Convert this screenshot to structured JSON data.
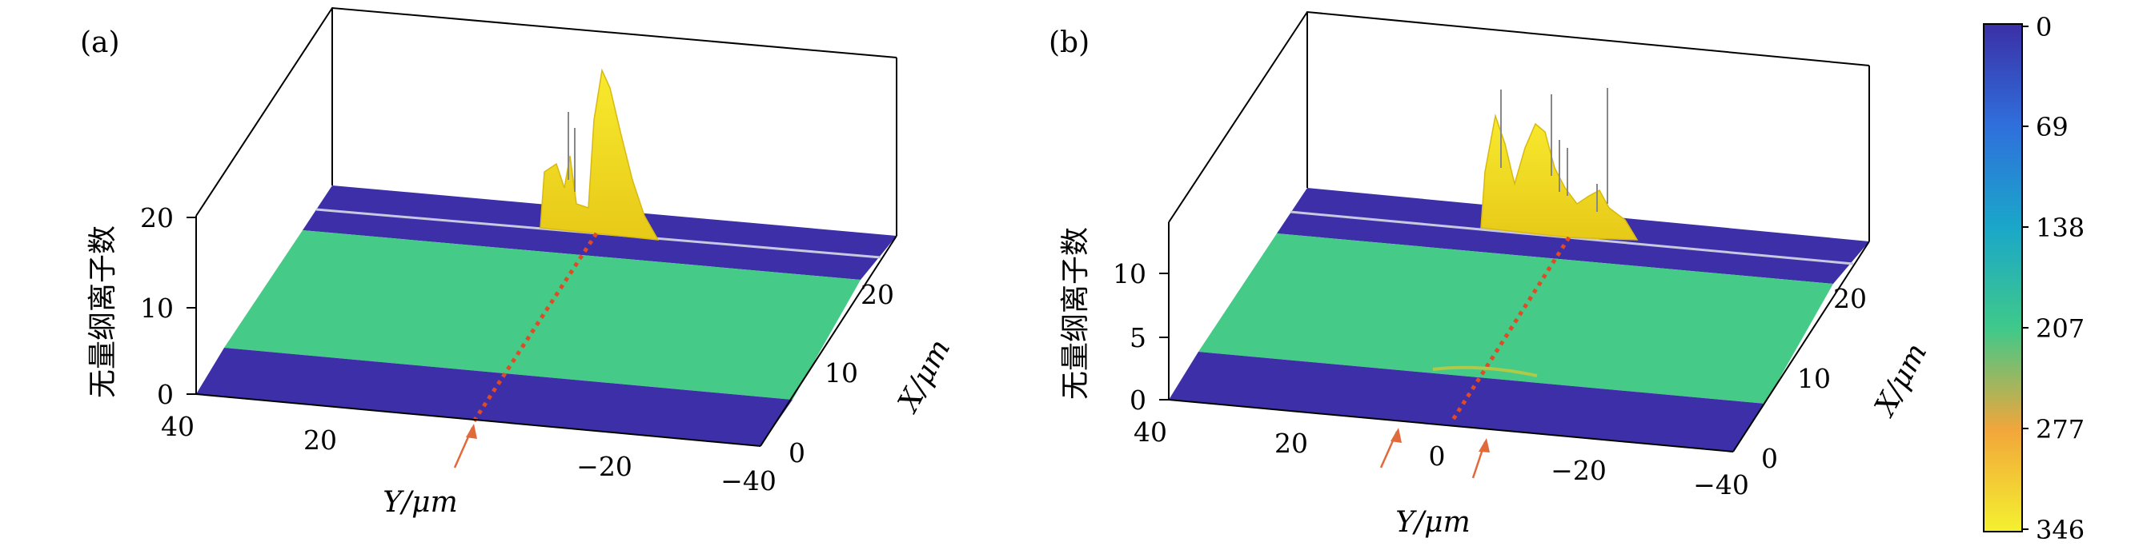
{
  "chart_data": [
    {
      "type": "surface3d",
      "panel_label": "(a)",
      "zlabel": "无量纲离子数",
      "xlabel": "Y/μm",
      "ylabel": "X/μm",
      "z_ticks": [
        "0",
        "10",
        "20"
      ],
      "y_ticks": [
        "40",
        "20",
        "−20",
        "−40"
      ],
      "x_ticks": [
        "0",
        "10",
        "20"
      ],
      "zlim": [
        0,
        20
      ],
      "ylim": [
        40,
        -40
      ],
      "xlim": [
        0,
        25
      ],
      "bands": [
        {
          "name": "low-region-near",
          "value": 0
        },
        {
          "name": "mid-region",
          "value": 207
        },
        {
          "name": "low-region-far",
          "value": 0
        }
      ],
      "peaks": [
        {
          "y": 8,
          "height": 4
        },
        {
          "y": 5,
          "height": 5
        },
        {
          "y": 0,
          "height": 15
        },
        {
          "y": -3,
          "height": 10
        }
      ],
      "markers": [
        {
          "y": 5,
          "type": "arrow"
        }
      ]
    },
    {
      "type": "surface3d",
      "panel_label": "(b)",
      "zlabel": "无量纲离子数",
      "xlabel": "Y/μm",
      "ylabel": "X/μm",
      "z_ticks": [
        "0",
        "5",
        "10"
      ],
      "y_ticks": [
        "40",
        "20",
        "0",
        "−20",
        "−40"
      ],
      "x_ticks": [
        "0",
        "10",
        "20"
      ],
      "zlim": [
        0,
        13
      ],
      "ylim": [
        40,
        -40
      ],
      "xlim": [
        0,
        25
      ],
      "bands": [
        {
          "name": "low-region-near",
          "value": 0
        },
        {
          "name": "mid-region",
          "value": 207
        },
        {
          "name": "low-region-far",
          "value": 0
        }
      ],
      "peaks": [
        {
          "y": 10,
          "height": 6
        },
        {
          "y": 5,
          "height": 8
        },
        {
          "y": 0,
          "height": 4
        },
        {
          "y": -6,
          "height": 3
        }
      ],
      "markers": [
        {
          "y": 8,
          "type": "arrow"
        },
        {
          "y": -4,
          "type": "arrow"
        }
      ]
    }
  ],
  "colorbar": {
    "ticks": [
      "0",
      "69",
      "138",
      "207",
      "277",
      "346"
    ],
    "colors": [
      "#3b2fa6",
      "#2f6fdc",
      "#1aa7c9",
      "#3fc98a",
      "#f2a63a",
      "#f4f130"
    ]
  }
}
